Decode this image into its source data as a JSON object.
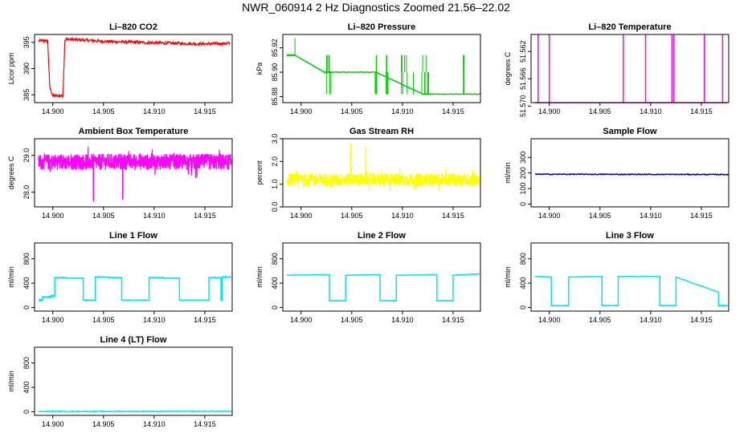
{
  "title": "NWR_060914  2 Hz Diagnostics Zoomed 21.56–22.02",
  "x_ticks": [
    "14.900",
    "14.905",
    "14.910",
    "14.915"
  ],
  "x_tick_values": [
    14.9,
    14.905,
    14.91,
    14.915
  ],
  "xlim": [
    14.8982,
    14.9177
  ],
  "colors": {
    "red": "#ff0000",
    "green": "#00cc00",
    "magenta": "#ff00ff",
    "yellow": "#ffff00",
    "blue": "#0000cc",
    "cyan": "#00e5ee"
  },
  "chart_data": [
    {
      "type": "line",
      "title": "Li–820 CO2",
      "ylabel": "Licor ppm",
      "color_key": "red",
      "ylim": [
        383.5,
        396.5
      ],
      "yticks": [
        385,
        390,
        395
      ],
      "ytick_labels": [
        "385",
        "390",
        "395"
      ],
      "gen": "co2",
      "series": [
        {
          "name": "CO2",
          "x": [
            14.8986,
            14.8995,
            14.8997,
            14.9,
            14.9005,
            14.901,
            14.9012,
            14.9015,
            14.905,
            14.91,
            14.915,
            14.9175
          ],
          "y": [
            395.3,
            395.3,
            386.5,
            384.8,
            384.8,
            384.8,
            395.5,
            395.6,
            395.2,
            394.9,
            394.7,
            394.8
          ]
        }
      ]
    },
    {
      "type": "line",
      "title": "Li–820 Pressure",
      "ylabel": "kPa",
      "color_key": "green",
      "ylim": [
        85.875,
        85.931
      ],
      "yticks": [
        85.88,
        85.9,
        85.92
      ],
      "ytick_labels": [
        "85.88",
        "85.90",
        "85.92"
      ],
      "gen": "steps",
      "series": [
        {
          "name": "Pressure",
          "x": [
            14.8986,
            14.8994,
            14.9023,
            14.903,
            14.9074,
            14.912,
            14.913,
            14.9177
          ],
          "y": [
            85.914,
            85.914,
            85.9,
            85.9,
            85.9,
            85.882,
            85.882,
            85.882
          ]
        }
      ]
    },
    {
      "type": "line",
      "title": "Li–820 Temperature",
      "ylabel": "degrees C",
      "color_key": "magenta",
      "ylim": [
        51.5695,
        51.5595
      ],
      "yticks": [
        51.57,
        51.566,
        51.562
      ],
      "ytick_labels": [
        "51.570",
        "51.566",
        "51.562"
      ],
      "gen": "spikes",
      "series": [
        {
          "name": "Temperature",
          "baseline": 51.5695,
          "spikes_x": [
            14.8989,
            14.9,
            14.9073,
            14.9095,
            14.9121,
            14.9123,
            14.9153,
            14.9171
          ],
          "spikes_y": [
            51.5595,
            51.5595,
            51.5595,
            51.5595,
            51.5595,
            51.5595,
            51.5595,
            51.5595
          ]
        }
      ]
    },
    {
      "type": "line",
      "title": "Ambient Box Temperature",
      "ylabel": "degrees C",
      "color_key": "magenta",
      "ylim": [
        27.6,
        29.45
      ],
      "yticks": [
        28.0,
        29.0
      ],
      "ytick_labels": [
        "28.0",
        "29.0"
      ],
      "gen": "noise",
      "series": [
        {
          "name": "Ambient",
          "mean": 28.82,
          "noise": 0.22,
          "dips_x": [
            14.904,
            14.9069
          ],
          "dips_y": [
            27.75,
            27.8
          ]
        }
      ]
    },
    {
      "type": "line",
      "title": "Gas Stream RH",
      "ylabel": "percent",
      "color_key": "yellow",
      "ylim": [
        0.0,
        3.0
      ],
      "yticks": [
        0.0,
        1.0,
        2.0,
        3.0
      ],
      "ytick_labels": [
        "0.0",
        "1.0",
        "2.0",
        "3.0"
      ],
      "gen": "noise",
      "series": [
        {
          "name": "RH",
          "mean": 1.2,
          "noise": 0.28,
          "dips_x": [
            14.9049,
            14.9064
          ],
          "dips_y": [
            2.8,
            2.65
          ]
        }
      ]
    },
    {
      "type": "line",
      "title": "Sample Flow",
      "ylabel": "ml/min",
      "color_key": "blue",
      "ylim": [
        -18,
        420
      ],
      "yticks": [
        0,
        100,
        200,
        300
      ],
      "ytick_labels": [
        "0",
        "100",
        "200",
        "300"
      ],
      "gen": "flat",
      "series": [
        {
          "name": "Sample",
          "x": [
            14.8986,
            14.9177
          ],
          "y": [
            192,
            190
          ]
        }
      ]
    },
    {
      "type": "line",
      "title": "Line 1 Flow",
      "ylabel": "ml/min",
      "color_key": "cyan",
      "ylim": [
        -60,
        1060
      ],
      "yticks": [
        0,
        400,
        800
      ],
      "ytick_labels": [
        "0",
        "400",
        "800"
      ],
      "gen": "steps",
      "series": [
        {
          "name": "Line 1",
          "x": [
            14.8986,
            14.899,
            14.899,
            14.8997,
            14.8997,
            14.9002,
            14.9002,
            14.9014,
            14.9014,
            14.903,
            14.903,
            14.9042,
            14.9042,
            14.9056,
            14.9056,
            14.9068,
            14.9068,
            14.9095,
            14.9095,
            14.9109,
            14.9109,
            14.9125,
            14.9125,
            14.9154,
            14.9154,
            14.9166,
            14.9166,
            14.9167,
            14.9167,
            14.9176
          ],
          "y": [
            120,
            120,
            170,
            170,
            180,
            190,
            490,
            490,
            480,
            480,
            120,
            120,
            500,
            500,
            490,
            490,
            120,
            120,
            490,
            490,
            480,
            480,
            120,
            120,
            490,
            490,
            120,
            120,
            500,
            500
          ]
        }
      ]
    },
    {
      "type": "line",
      "title": "Line 2 Flow",
      "ylabel": "ml/min",
      "color_key": "cyan",
      "ylim": [
        -60,
        1060
      ],
      "yticks": [
        0,
        400,
        800
      ],
      "ytick_labels": [
        "0",
        "400",
        "800"
      ],
      "gen": "steps",
      "series": [
        {
          "name": "Line 2",
          "x": [
            14.8986,
            14.9028,
            14.9028,
            14.9044,
            14.9044,
            14.9078,
            14.9078,
            14.9094,
            14.9094,
            14.9134,
            14.9134,
            14.915,
            14.915,
            14.9176
          ],
          "y": [
            530,
            540,
            110,
            110,
            530,
            540,
            110,
            110,
            530,
            540,
            110,
            110,
            530,
            550
          ]
        }
      ]
    },
    {
      "type": "line",
      "title": "Line 3 Flow",
      "ylabel": "ml/min",
      "color_key": "cyan",
      "ylim": [
        -60,
        1060
      ],
      "yticks": [
        0,
        400,
        800
      ],
      "ytick_labels": [
        "0",
        "400",
        "800"
      ],
      "gen": "steps",
      "series": [
        {
          "name": "Line 3",
          "x": [
            14.8986,
            14.9002,
            14.9002,
            14.9019,
            14.9019,
            14.9052,
            14.9052,
            14.9068,
            14.9068,
            14.9109,
            14.9109,
            14.9125,
            14.9125,
            14.9167,
            14.9167,
            14.9176
          ],
          "y": [
            510,
            500,
            30,
            30,
            500,
            510,
            30,
            30,
            510,
            510,
            30,
            30,
            500,
            250,
            30,
            30
          ]
        }
      ]
    },
    {
      "type": "line",
      "title": "Line 4 (LT) Flow",
      "ylabel": "ml/min",
      "color_key": "cyan",
      "ylim": [
        -60,
        1060
      ],
      "yticks": [
        0,
        400,
        800
      ],
      "ytick_labels": [
        "0",
        "400",
        "800"
      ],
      "gen": "flat",
      "series": [
        {
          "name": "Line 4",
          "x": [
            14.8986,
            14.9177
          ],
          "y": [
            5,
            5
          ]
        }
      ]
    }
  ]
}
